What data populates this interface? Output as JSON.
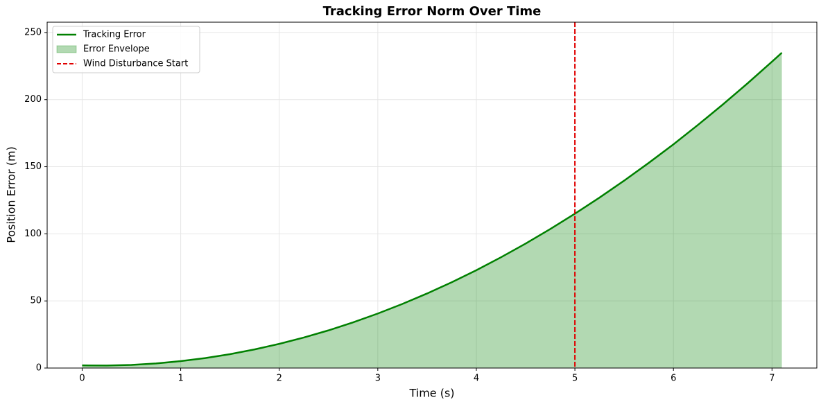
{
  "chart_data": {
    "type": "line",
    "title": "Tracking Error Norm Over Time",
    "x_label": "Time (s)",
    "y_label": "Position Error (m)",
    "x": [
      0,
      0.25,
      0.5,
      0.75,
      1,
      1.25,
      1.5,
      1.75,
      2,
      2.25,
      2.5,
      2.75,
      3,
      3.25,
      3.5,
      3.75,
      4,
      4.25,
      4.5,
      4.75,
      5,
      5.25,
      5.5,
      5.75,
      6,
      6.25,
      6.5,
      6.75,
      7,
      7.1
    ],
    "series": [
      {
        "name": "Tracking Error",
        "color": "#008000",
        "values": [
          2,
          1.87,
          2.35,
          3.44,
          5.14,
          7.44,
          10.35,
          13.87,
          18.0,
          22.74,
          28.08,
          34.03,
          40.6,
          47.76,
          55.54,
          63.93,
          72.9,
          82.52,
          92.73,
          103.55,
          115.0,
          127.01,
          139.65,
          152.9,
          166.7,
          181.23,
          196.3,
          211.99,
          228.28,
          234.96
        ]
      }
    ],
    "envelope": {
      "name": "Error Envelope",
      "color": "#008000",
      "opacity": 0.3
    },
    "vline": {
      "name": "Wind Disturbance Start",
      "x": 5,
      "color": "#e00000"
    },
    "xlim": [
      -0.355,
      7.455
    ],
    "xticks": [
      0,
      1,
      2,
      3,
      4,
      5,
      6,
      7
    ],
    "ylim": [
      0,
      257.7
    ],
    "yticks": [
      0,
      50,
      100,
      150,
      200,
      250
    ],
    "grid": true,
    "legend": "upper-left"
  }
}
